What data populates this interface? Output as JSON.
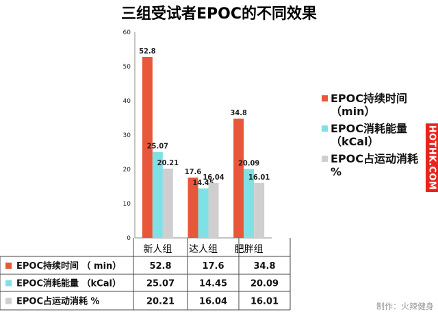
{
  "chart_data": {
    "type": "bar",
    "title": "三组受试者EPOC的不同效果",
    "categories": [
      "新人组",
      "达人组",
      "肥胖组"
    ],
    "ylim": [
      0,
      60
    ],
    "yticks": [
      0,
      10,
      20,
      30,
      40,
      50,
      60
    ],
    "grid": false,
    "legend_position": "right",
    "series": [
      {
        "name": "EPOC持续时间 （min）",
        "name_line1": "EPOC持续时间",
        "name_line2": "（min）",
        "table_name": "EPOC持续时间 （ min）",
        "color": "#e8573a",
        "values": [
          52.8,
          17.6,
          34.8
        ],
        "labels": [
          "52.8",
          "17.6",
          "34.8"
        ]
      },
      {
        "name": "EPOC消耗能量 （kCal）",
        "name_line1": "EPOC消耗能量",
        "name_line2": "（kCal）",
        "table_name": "EPOC消耗能量 （kCal）",
        "color": "#7fe0e6",
        "values": [
          25.07,
          14.45,
          20.09
        ],
        "labels": [
          "25.07",
          "14.45",
          "20.09"
        ]
      },
      {
        "name": "EPOC占运动消耗 %",
        "name_line1": "EPOC占运动消耗",
        "name_line2": "%",
        "table_name": "EPOC占运动消耗 %",
        "color": "#cfcfcf",
        "values": [
          20.21,
          16.04,
          16.01
        ],
        "labels": [
          "20.21",
          "16.04",
          "16.01"
        ]
      }
    ]
  },
  "watermark": "HOTHK.COM",
  "credit": "制作：火辣健身",
  "colors": {
    "watermark_bg": "#e8241c"
  }
}
